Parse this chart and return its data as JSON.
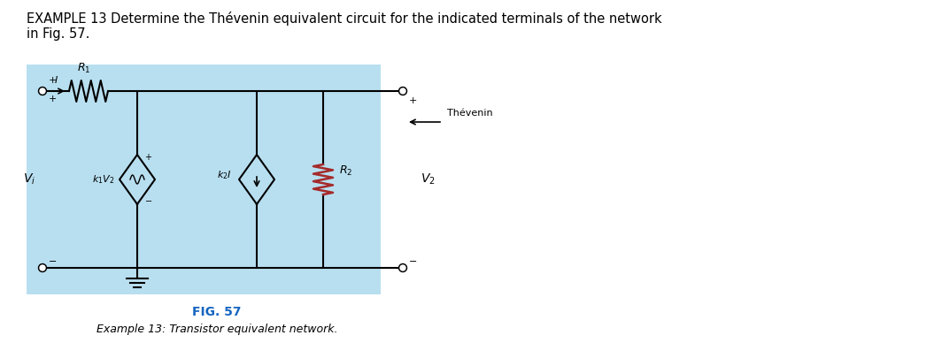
{
  "title_text": "EXAMPLE 13 Determine the Thévenin equivalent circuit for the indicated terminals of the network\nin Fig. 57.",
  "fig_label": "FIG. 57",
  "fig_caption": "Example 13: Transistor equivalent network.",
  "bg_color": "#add8e6",
  "bg_light": "#b8dff0",
  "text_color": "#000000",
  "blue_label": "#1565C0",
  "fig_label_color": "#1565C0"
}
